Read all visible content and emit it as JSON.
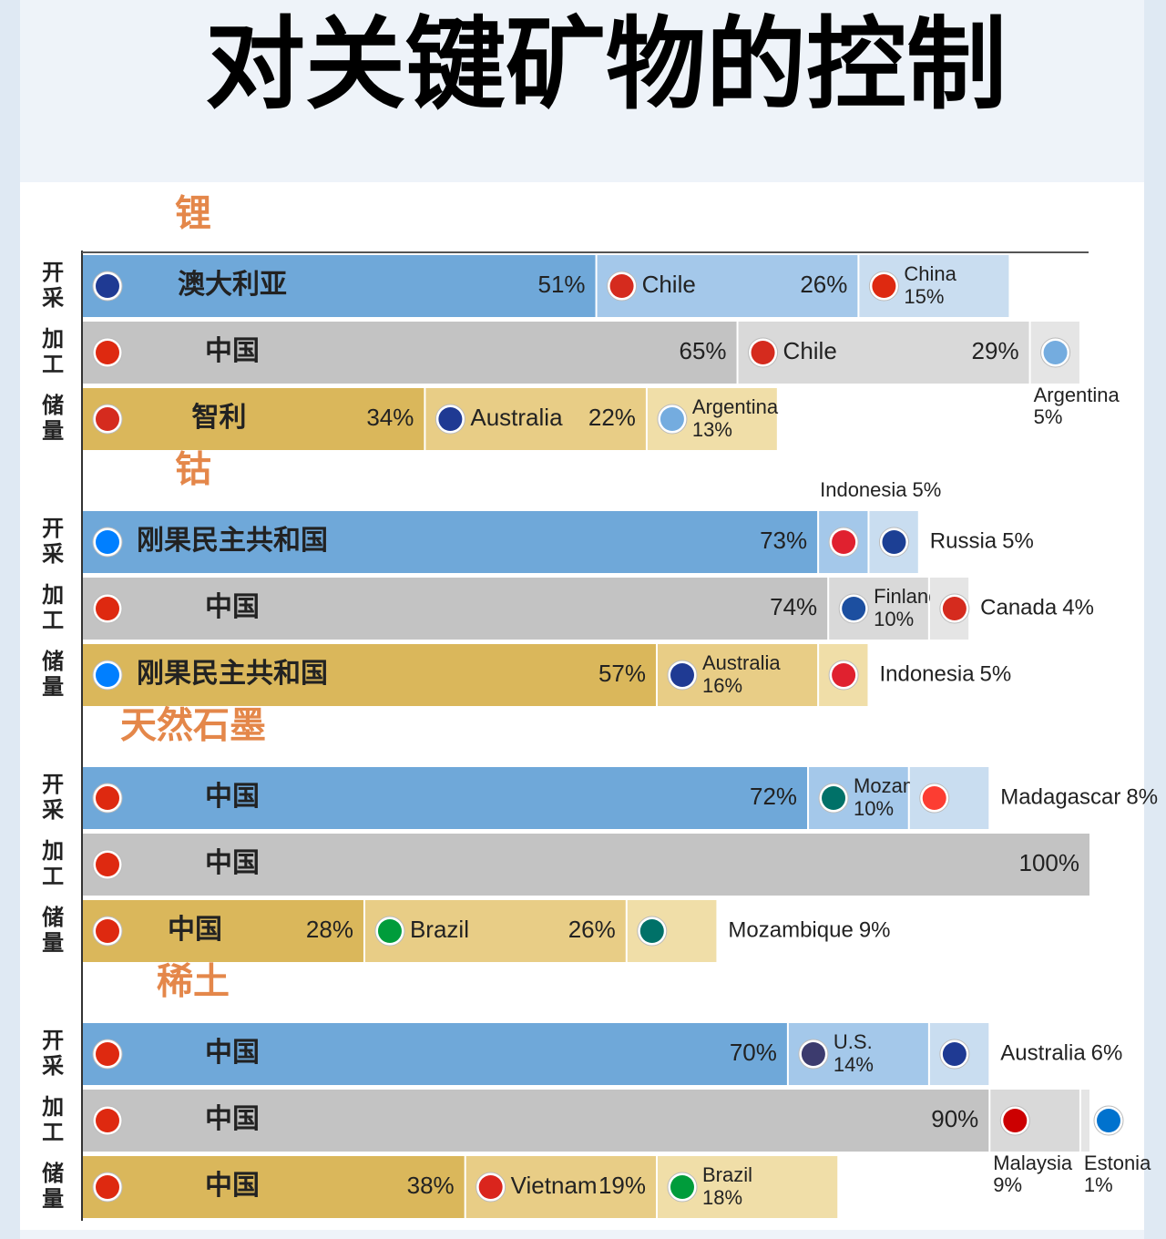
{
  "chart_data": {
    "type": "stacked-bar",
    "title": "对关键矿物的控制",
    "groups": [
      {
        "name": "锂",
        "rows": [
          {
            "label": "开采",
            "names": [
              "澳大利亚",
              "Chile",
              "China"
            ],
            "values": [
              51,
              26,
              15
            ],
            "value_labels": [
              "51%",
              "26%",
              "15%"
            ],
            "colors": [
              "#6fa8d9",
              "#a4c8ea",
              "#c9ddf0"
            ],
            "flag_colors": [
              "#1f3a93",
              "#d52b1e",
              "#de2910"
            ]
          },
          {
            "label": "加工",
            "names": [
              "中国",
              "Chile",
              "Argentina"
            ],
            "values": [
              65,
              29,
              5
            ],
            "value_labels": [
              "65%",
              "29%",
              "5%"
            ],
            "colors": [
              "#c3c3c3",
              "#d9d9d9",
              "#e5e5e5"
            ],
            "flag_colors": [
              "#de2910",
              "#d52b1e",
              "#74acdf"
            ]
          },
          {
            "label": "储量",
            "names": [
              "智利",
              "Australia",
              "Argentina"
            ],
            "values": [
              34,
              22,
              13
            ],
            "value_labels": [
              "34%",
              "22%",
              "13%"
            ],
            "colors": [
              "#dab75b",
              "#e8cd86",
              "#f0dea8"
            ],
            "flag_colors": [
              "#d52b1e",
              "#1f3a93",
              "#74acdf"
            ]
          }
        ]
      },
      {
        "name": "钴",
        "rows": [
          {
            "label": "开采",
            "names": [
              "刚果民主共和国",
              "Indonesia",
              "Russia"
            ],
            "values": [
              73,
              5,
              5
            ],
            "value_labels": [
              "73%",
              "5%",
              "5%"
            ],
            "colors": [
              "#6fa8d9",
              "#a4c8ea",
              "#c9ddf0"
            ],
            "flag_colors": [
              "#007fff",
              "#e0212f",
              "#1c3f94"
            ]
          },
          {
            "label": "加工",
            "names": [
              "中国",
              "Finland",
              "Canada"
            ],
            "values": [
              74,
              10,
              4
            ],
            "value_labels": [
              "74%",
              "10%",
              "4%"
            ],
            "colors": [
              "#c3c3c3",
              "#d9d9d9",
              "#e5e5e5"
            ],
            "flag_colors": [
              "#de2910",
              "#1c4fa0",
              "#d52b1e"
            ]
          },
          {
            "label": "储量",
            "names": [
              "刚果民主共和国",
              "Australia",
              "Indonesia"
            ],
            "values": [
              57,
              16,
              5
            ],
            "value_labels": [
              "57%",
              "16%",
              "5%"
            ],
            "colors": [
              "#dab75b",
              "#e8cd86",
              "#f0dea8"
            ],
            "flag_colors": [
              "#007fff",
              "#1f3a93",
              "#e0212f"
            ]
          }
        ]
      },
      {
        "name": "天然石墨",
        "rows": [
          {
            "label": "开采",
            "names": [
              "中国",
              "Mozambique",
              "Madagascar"
            ],
            "values": [
              72,
              10,
              8
            ],
            "value_labels": [
              "72%",
              "10%",
              "8%"
            ],
            "colors": [
              "#6fa8d9",
              "#a4c8ea",
              "#c9ddf0"
            ],
            "flag_colors": [
              "#de2910",
              "#007168",
              "#fc3d32"
            ]
          },
          {
            "label": "加工",
            "names": [
              "中国"
            ],
            "values": [
              100
            ],
            "value_labels": [
              "100%"
            ],
            "colors": [
              "#c3c3c3"
            ],
            "flag_colors": [
              "#de2910"
            ]
          },
          {
            "label": "储量",
            "names": [
              "中国",
              "Brazil",
              "Mozambique"
            ],
            "values": [
              28,
              26,
              9
            ],
            "value_labels": [
              "28%",
              "26%",
              "9%"
            ],
            "colors": [
              "#dab75b",
              "#e8cd86",
              "#f0dea8"
            ],
            "flag_colors": [
              "#de2910",
              "#009c3b",
              "#007168"
            ]
          }
        ]
      },
      {
        "name": "稀土",
        "rows": [
          {
            "label": "开采",
            "names": [
              "中国",
              "U.S.",
              "Australia"
            ],
            "values": [
              70,
              14,
              6
            ],
            "value_labels": [
              "70%",
              "14%",
              "6%"
            ],
            "colors": [
              "#6fa8d9",
              "#a4c8ea",
              "#c9ddf0"
            ],
            "flag_colors": [
              "#de2910",
              "#3c3b6e",
              "#1f3a93"
            ]
          },
          {
            "label": "加工",
            "names": [
              "中国",
              "Malaysia",
              "Estonia"
            ],
            "values": [
              90,
              9,
              1
            ],
            "value_labels": [
              "90%",
              "9%",
              "1%"
            ],
            "colors": [
              "#c3c3c3",
              "#d9d9d9",
              "#e5e5e5"
            ],
            "flag_colors": [
              "#de2910",
              "#cc0001",
              "#0072ce"
            ]
          },
          {
            "label": "储量",
            "names": [
              "中国",
              "Vietnam",
              "Brazil"
            ],
            "values": [
              38,
              19,
              18
            ],
            "value_labels": [
              "38%",
              "19%",
              "18%"
            ],
            "colors": [
              "#dab75b",
              "#e8cd86",
              "#f0dea8"
            ],
            "flag_colors": [
              "#de2910",
              "#da251d",
              "#009c3b"
            ]
          }
        ]
      }
    ]
  }
}
